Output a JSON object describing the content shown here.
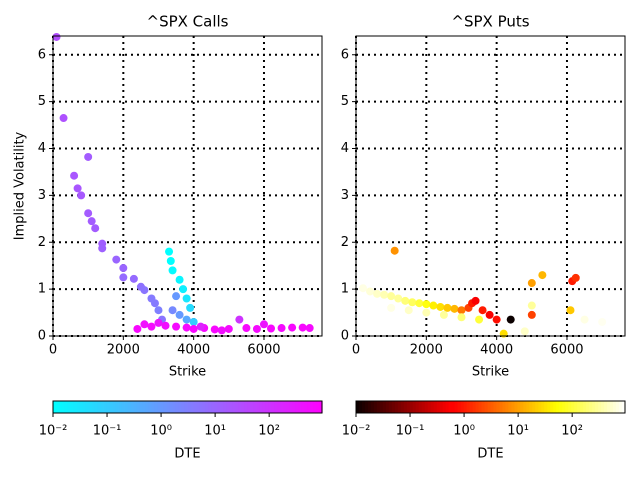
{
  "chart_data": [
    {
      "type": "scatter",
      "title": "^SPX Calls",
      "x_label": "Strike",
      "y_label": "Implied Volatility",
      "xlim": [
        0,
        7650
      ],
      "ylim": [
        0,
        6.4
      ],
      "xticks": [
        0,
        2000,
        4000,
        6000
      ],
      "yticks": [
        0,
        1,
        2,
        3,
        4,
        5,
        6
      ],
      "grid": true,
      "colormap": "cool",
      "color_label": "DTE",
      "color_scale": "log",
      "clim": [
        0.01,
        950
      ],
      "cticks": [
        {
          "value": 0.01,
          "label": "10⁻²"
        },
        {
          "value": 0.1,
          "label": "10⁻¹"
        },
        {
          "value": 1,
          "label": "10⁰"
        },
        {
          "value": 10,
          "label": "10¹"
        },
        {
          "value": 100,
          "label": "10²"
        }
      ],
      "x": [
        100,
        300,
        600,
        700,
        800,
        1000,
        1100,
        1200,
        1400,
        1400,
        1800,
        1000,
        2000,
        2000,
        2300,
        2500,
        2600,
        2800,
        2900,
        3000,
        3100,
        3300,
        3350,
        3400,
        3600,
        3700,
        3800,
        3900,
        4000,
        3500,
        3400,
        3600,
        3800,
        2400,
        2600,
        2800,
        3000,
        3200,
        3500,
        3800,
        4000,
        4300,
        4600,
        5000,
        5300,
        5500,
        5800,
        6000,
        6200,
        6500,
        6800,
        7100,
        7300,
        4200,
        4800
      ],
      "y": [
        6.38,
        4.65,
        3.42,
        3.15,
        3.0,
        2.62,
        2.45,
        2.3,
        1.97,
        1.87,
        1.63,
        3.82,
        1.45,
        1.25,
        1.22,
        1.05,
        0.98,
        0.8,
        0.7,
        0.55,
        0.35,
        1.8,
        1.6,
        1.4,
        1.2,
        1.0,
        0.8,
        0.6,
        0.3,
        0.85,
        0.55,
        0.45,
        0.35,
        0.15,
        0.25,
        0.2,
        0.28,
        0.22,
        0.2,
        0.18,
        0.15,
        0.17,
        0.14,
        0.15,
        0.35,
        0.17,
        0.15,
        0.25,
        0.16,
        0.17,
        0.18,
        0.18,
        0.17,
        0.2,
        0.12
      ],
      "c": [
        30,
        25,
        20,
        20,
        18,
        16,
        15,
        15,
        14,
        12,
        10,
        15,
        10,
        8,
        8,
        6,
        5,
        4,
        4,
        3,
        5,
        0.01,
        0.01,
        0.012,
        0.015,
        0.02,
        0.03,
        0.05,
        0.1,
        1,
        2,
        1,
        0.5,
        700,
        500,
        600,
        400,
        500,
        600,
        700,
        700,
        600,
        700,
        600,
        100,
        700,
        600,
        400,
        700,
        600,
        700,
        700,
        600,
        200,
        500
      ]
    },
    {
      "type": "scatter",
      "title": "^SPX Puts",
      "x_label": "Strike",
      "xlim": [
        0,
        7650
      ],
      "ylim": [
        0,
        6.4
      ],
      "xticks": [
        0,
        2000,
        4000,
        6000
      ],
      "yticks": [
        0,
        1,
        2,
        3,
        4,
        5,
        6
      ],
      "grid": true,
      "colormap": "hot",
      "color_label": "DTE",
      "color_scale": "log",
      "clim": [
        0.01,
        950
      ],
      "cticks": [
        {
          "value": 0.01,
          "label": "10⁻²"
        },
        {
          "value": 0.1,
          "label": "10⁻¹"
        },
        {
          "value": 1,
          "label": "10⁰"
        },
        {
          "value": 10,
          "label": "10¹"
        },
        {
          "value": 100,
          "label": "10²"
        }
      ],
      "x": [
        200,
        400,
        600,
        800,
        1000,
        1200,
        1400,
        1600,
        1800,
        2000,
        2200,
        2400,
        2600,
        2800,
        3000,
        3200,
        3300,
        3400,
        3600,
        3800,
        4000,
        1000,
        1500,
        2000,
        2500,
        3000,
        3500,
        4400,
        1100,
        5000,
        5300,
        5000,
        6100,
        6150,
        6250,
        6500,
        7000,
        5000,
        4200,
        4800
      ],
      "y": [
        1.02,
        0.95,
        0.9,
        0.88,
        0.85,
        0.8,
        0.75,
        0.72,
        0.7,
        0.68,
        0.65,
        0.62,
        0.6,
        0.58,
        0.55,
        0.6,
        0.7,
        0.75,
        0.55,
        0.45,
        0.35,
        0.6,
        0.55,
        0.5,
        0.45,
        0.4,
        0.35,
        0.35,
        1.82,
        1.13,
        1.3,
        0.45,
        0.55,
        1.17,
        1.24,
        0.35,
        0.3,
        0.65,
        0.05,
        0.1
      ],
      "c": [
        700,
        600,
        500,
        400,
        300,
        300,
        200,
        150,
        100,
        60,
        40,
        30,
        20,
        15,
        5,
        2,
        1,
        0.5,
        1,
        0.5,
        0.8,
        700,
        500,
        400,
        300,
        200,
        100,
        0.01,
        8,
        10,
        15,
        2,
        20,
        1,
        1.5,
        700,
        800,
        300,
        30,
        500
      ]
    }
  ]
}
